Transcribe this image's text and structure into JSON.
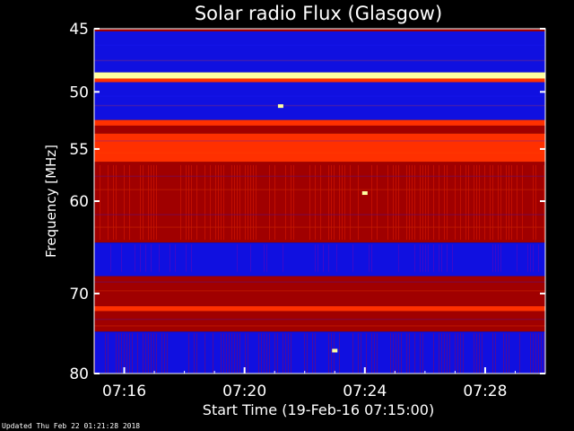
{
  "chart_data": {
    "type": "heatmap",
    "title": "Solar radio Flux (Glasgow)",
    "xlabel": "Start Time (19-Feb-16 07:15:00)",
    "ylabel": "Frequency [MHz]",
    "x_tick_labels": [
      "07:16",
      "07:20",
      "07:24",
      "07:28"
    ],
    "x_tick_minutes": [
      1,
      5,
      9,
      13
    ],
    "xlim_minutes": [
      0,
      15
    ],
    "y_tick_labels": [
      "45",
      "50",
      "55",
      "60",
      "70",
      "80"
    ],
    "y_tick_values": [
      45,
      50,
      55,
      60,
      70,
      80
    ],
    "ylim": [
      45,
      80
    ],
    "y_scale": "log",
    "grid": false,
    "colors": {
      "low": "#1010e0",
      "mid": "#a00000",
      "high": "#ff3000",
      "peak": "#ffffa0",
      "background": "#000000"
    },
    "bands": [
      {
        "f0": 45.0,
        "f1": 45.2,
        "level": "mid"
      },
      {
        "f0": 45.2,
        "f1": 48.4,
        "level": "low"
      },
      {
        "f0": 48.4,
        "f1": 48.9,
        "level": "peak"
      },
      {
        "f0": 48.9,
        "f1": 49.2,
        "level": "high"
      },
      {
        "f0": 49.2,
        "f1": 52.4,
        "level": "low"
      },
      {
        "f0": 52.4,
        "f1": 52.9,
        "level": "high"
      },
      {
        "f0": 52.9,
        "f1": 53.6,
        "level": "mid"
      },
      {
        "f0": 53.6,
        "f1": 56.2,
        "level": "high"
      },
      {
        "f0": 56.2,
        "f1": 64.3,
        "level": "mid"
      },
      {
        "f0": 64.3,
        "f1": 68.0,
        "level": "low"
      },
      {
        "f0": 68.0,
        "f1": 71.5,
        "level": "mid"
      },
      {
        "f0": 71.5,
        "f1": 72.1,
        "level": "high"
      },
      {
        "f0": 72.1,
        "f1": 74.6,
        "level": "mid"
      },
      {
        "f0": 74.6,
        "f1": 80.0,
        "level": "low"
      }
    ],
    "highlights": [
      {
        "t": 6.2,
        "f": 51.2,
        "level": "peak"
      },
      {
        "t": 9.0,
        "f": 59.2,
        "level": "peak"
      },
      {
        "t": 8.0,
        "f": 77.0,
        "level": "peak"
      }
    ]
  },
  "footer": {
    "updated": "Updated Thu Feb 22 01:21:28 2018"
  }
}
